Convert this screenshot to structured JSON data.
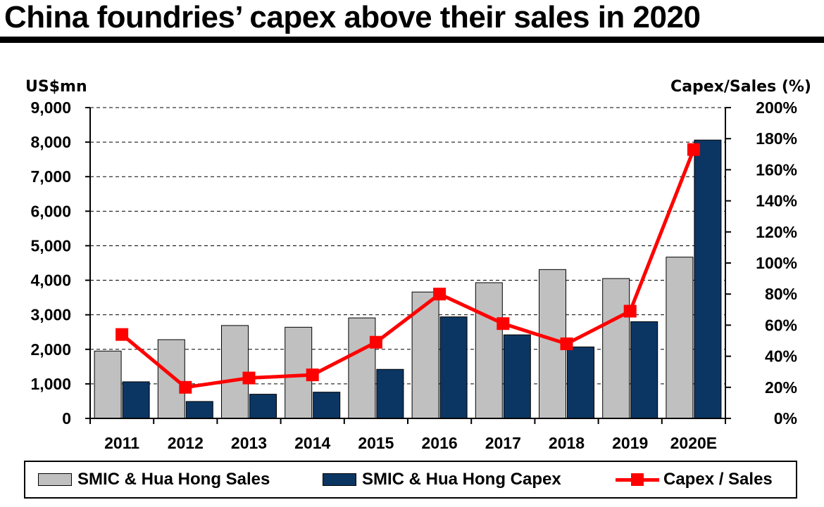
{
  "title": "China foundries’ capex above their sales in 2020",
  "colors": {
    "sales": "#c0c0c0",
    "capex": "#0b3663",
    "ratio": "#ff0000",
    "frame": "#000000"
  },
  "chart_data": {
    "type": "bar",
    "title": "China foundries’ capex above their sales in 2020",
    "categories": [
      "2011",
      "2012",
      "2013",
      "2014",
      "2015",
      "2016",
      "2017",
      "2018",
      "2019",
      "2020E"
    ],
    "series": [
      {
        "name": "SMIC & Hua Hong Sales",
        "type": "bar",
        "axis": "left",
        "values": [
          1950,
          2280,
          2690,
          2640,
          2910,
          3660,
          3930,
          4310,
          4050,
          4670
        ]
      },
      {
        "name": "SMIC & Hua Hong Capex",
        "type": "bar",
        "axis": "left",
        "values": [
          1060,
          490,
          700,
          760,
          1420,
          2940,
          2420,
          2070,
          2800,
          8060
        ]
      },
      {
        "name": "Capex / Sales",
        "type": "line",
        "axis": "right",
        "values": [
          54,
          20,
          26,
          28,
          49,
          80,
          61,
          48,
          69,
          173
        ]
      }
    ],
    "ylabel": "US$mn",
    "ylabel_right": "Capex/Sales (%)",
    "ylim": [
      0,
      9000
    ],
    "ylim_right": [
      0,
      200
    ],
    "yticks": [
      "0",
      "1,000",
      "2,000",
      "3,000",
      "4,000",
      "5,000",
      "6,000",
      "7,000",
      "8,000",
      "9,000"
    ],
    "yticks_right": [
      "0%",
      "20%",
      "40%",
      "60%",
      "80%",
      "100%",
      "120%",
      "140%",
      "160%",
      "180%",
      "200%"
    ],
    "grid": "horizontal",
    "legend_position": "bottom"
  }
}
